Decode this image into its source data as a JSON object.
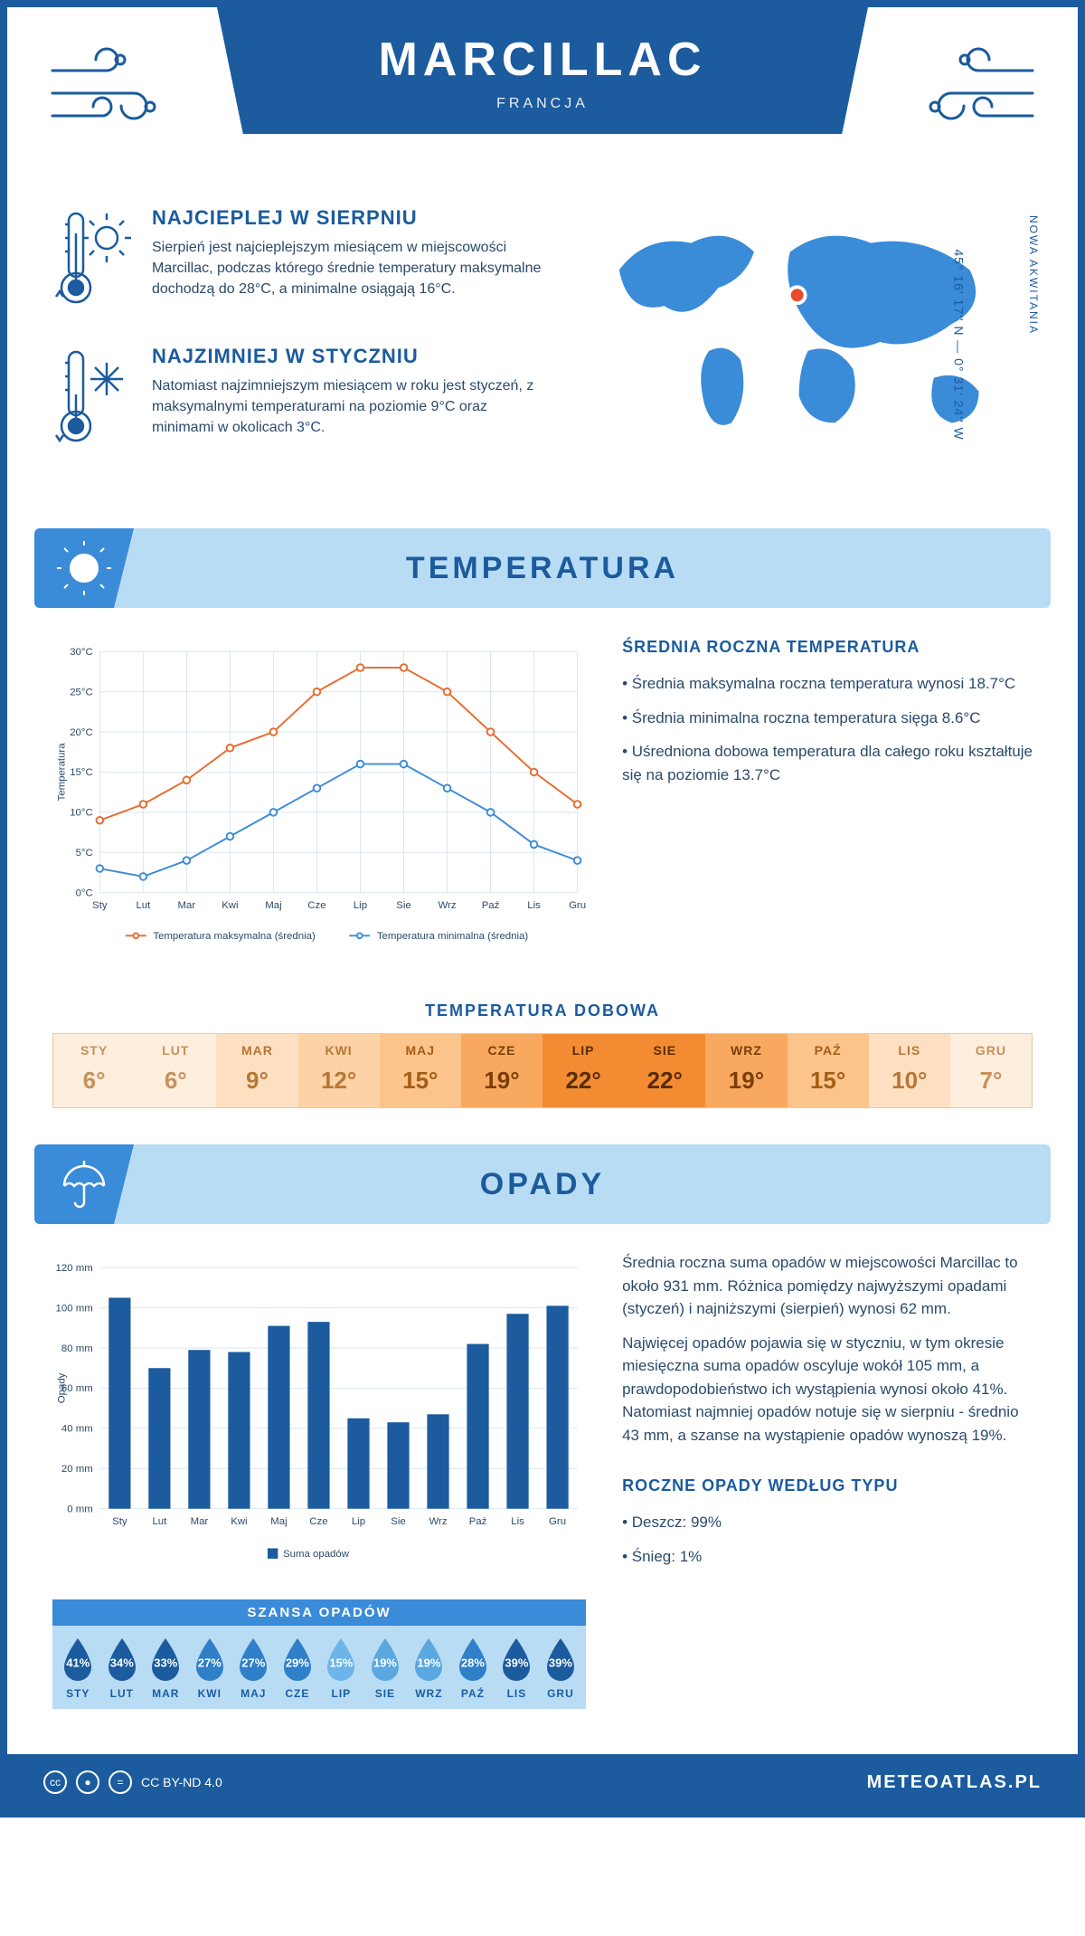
{
  "header": {
    "title": "MARCILLAC",
    "subtitle": "FRANCJA"
  },
  "coords": "45° 16' 17'' N — 0° 31' 24'' W",
  "region": "NOWA AKWITANIA",
  "warmest": {
    "title": "NAJCIEPLEJ W SIERPNIU",
    "text": "Sierpień jest najcieplejszym miesiącem w miejscowości Marcillac, podczas którego średnie temperatury maksymalne dochodzą do 28°C, a minimalne osiągają 16°C."
  },
  "coldest": {
    "title": "NAJZIMNIEJ W STYCZNIU",
    "text": "Natomiast najzimniejszym miesiącem w roku jest styczeń, z maksymalnymi temperaturami na poziomie 9°C oraz minimami w okolicach 3°C."
  },
  "temperature_section": {
    "header": "TEMPERATURA",
    "annual_title": "ŚREDNIA ROCZNA TEMPERATURA",
    "bullets": [
      "• Średnia maksymalna roczna temperatura wynosi 18.7°C",
      "• Średnia minimalna roczna temperatura sięga 8.6°C",
      "• Uśredniona dobowa temperatura dla całego roku kształtuje się na poziomie 13.7°C"
    ],
    "chart": {
      "type": "line",
      "months": [
        "Sty",
        "Lut",
        "Mar",
        "Kwi",
        "Maj",
        "Cze",
        "Lip",
        "Sie",
        "Wrz",
        "Paź",
        "Lis",
        "Gru"
      ],
      "series": [
        {
          "name": "Temperatura maksymalna (średnia)",
          "color": "#e86a2c",
          "values": [
            9,
            11,
            14,
            18,
            20,
            25,
            28,
            28,
            25,
            20,
            15,
            11
          ]
        },
        {
          "name": "Temperatura minimalna (średnia)",
          "color": "#3a8bd8",
          "values": [
            3,
            2,
            4,
            7,
            10,
            13,
            16,
            16,
            13,
            10,
            6,
            4
          ]
        }
      ],
      "ylabel": "Temperatura",
      "ylim": [
        0,
        30
      ],
      "ytick_step": 5,
      "ytick_suffix": "°C",
      "grid_color": "#d8e6f2",
      "marker": "circle",
      "marker_size": 4,
      "line_width": 2,
      "background": "#ffffff",
      "label_fontsize": 12
    },
    "daily_title": "TEMPERATURA DOBOWA",
    "daily": {
      "months": [
        "STY",
        "LUT",
        "MAR",
        "KWI",
        "MAJ",
        "CZE",
        "LIP",
        "SIE",
        "WRZ",
        "PAŹ",
        "LIS",
        "GRU"
      ],
      "values": [
        "6°",
        "6°",
        "9°",
        "12°",
        "15°",
        "19°",
        "22°",
        "22°",
        "19°",
        "15°",
        "10°",
        "7°"
      ],
      "colors": [
        "#fdeedd",
        "#fdeedd",
        "#fde0c2",
        "#fcd2a6",
        "#fbc48a",
        "#f9a95f",
        "#f38b33",
        "#f38b33",
        "#f9a95f",
        "#fbc48a",
        "#fde0c2",
        "#fdeedd"
      ],
      "text_colors": [
        "#c9905a",
        "#c9905a",
        "#b87636",
        "#b87636",
        "#a55d15",
        "#7a3e0a",
        "#5a2c05",
        "#5a2c05",
        "#7a3e0a",
        "#a55d15",
        "#b87636",
        "#c9905a"
      ]
    }
  },
  "precip_section": {
    "header": "OPADY",
    "text1": "Średnia roczna suma opadów w miejscowości Marcillac to około 931 mm. Różnica pomiędzy najwyższymi opadami (styczeń) i najniższymi (sierpień) wynosi 62 mm.",
    "text2": "Najwięcej opadów pojawia się w styczniu, w tym okresie miesięczna suma opadów oscyluje wokół 105 mm, a prawdopodobieństwo ich wystąpienia wynosi około 41%. Natomiast najmniej opadów notuje się w sierpniu - średnio 43 mm, a szanse na wystąpienie opadów wynoszą 19%.",
    "bytype_title": "ROCZNE OPADY WEDŁUG TYPU",
    "bytype": [
      "• Deszcz: 99%",
      "• Śnieg: 1%"
    ],
    "chart": {
      "type": "bar",
      "months": [
        "Sty",
        "Lut",
        "Mar",
        "Kwi",
        "Maj",
        "Cze",
        "Lip",
        "Sie",
        "Wrz",
        "Paź",
        "Lis",
        "Gru"
      ],
      "values": [
        105,
        70,
        79,
        78,
        91,
        93,
        45,
        43,
        47,
        82,
        97,
        101
      ],
      "bar_color": "#1b5b9e",
      "ylabel": "Opady",
      "ylim": [
        0,
        120
      ],
      "ytick_step": 20,
      "ytick_suffix": " mm",
      "grid_color": "#d8e6f2",
      "bar_width": 0.55,
      "legend": "Suma opadów",
      "label_fontsize": 12
    },
    "chance": {
      "title": "SZANSA OPADÓW",
      "months": [
        "STY",
        "LUT",
        "MAR",
        "KWI",
        "MAJ",
        "CZE",
        "LIP",
        "SIE",
        "WRZ",
        "PAŹ",
        "LIS",
        "GRU"
      ],
      "values": [
        "41%",
        "34%",
        "33%",
        "27%",
        "27%",
        "29%",
        "15%",
        "19%",
        "19%",
        "28%",
        "39%",
        "39%"
      ],
      "drop_colors": [
        "#1b5b9e",
        "#1b5b9e",
        "#1b5b9e",
        "#2f7fc9",
        "#2f7fc9",
        "#2f7fc9",
        "#6db4e8",
        "#5aa8e0",
        "#5aa8e0",
        "#2f7fc9",
        "#1b5b9e",
        "#1b5b9e"
      ]
    }
  },
  "footer": {
    "license": "CC BY-ND 4.0",
    "site": "METEOATLAS.PL"
  },
  "colors": {
    "primary": "#1b5b9e",
    "light": "#b9dcf5",
    "mid": "#3a8bd8"
  }
}
